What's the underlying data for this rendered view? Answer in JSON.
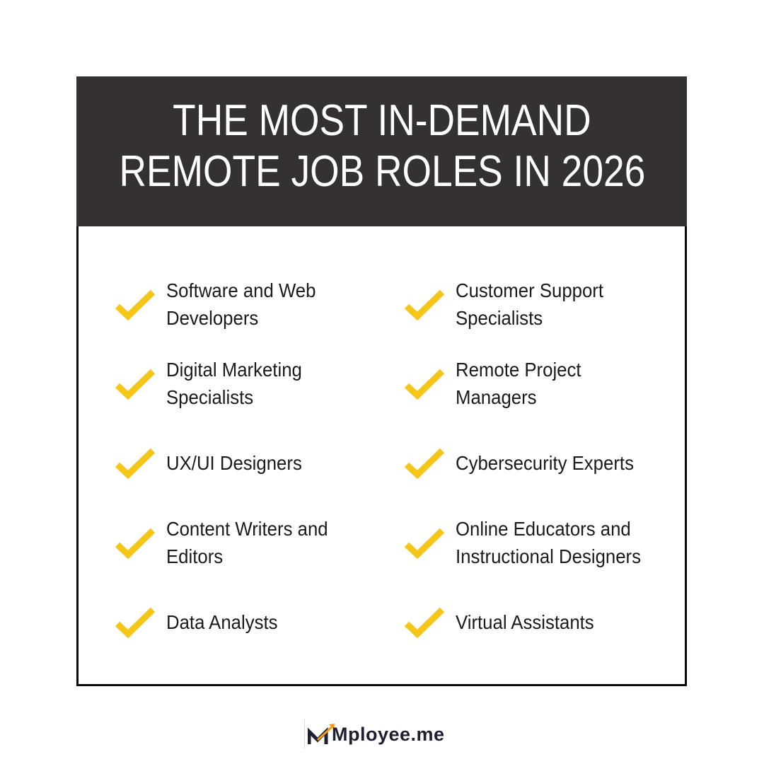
{
  "title": {
    "line1": "THE MOST IN-DEMAND",
    "line2": "REMOTE JOB ROLES IN 2026"
  },
  "colors": {
    "header_bg": "#333132",
    "check": "#F5C518",
    "logo_arrow": "#F39C12",
    "logo_text": "#1D2030"
  },
  "items": [
    {
      "icon": "checkmark-icon",
      "line1": "Software and Web",
      "line2": "Developers"
    },
    {
      "icon": "checkmark-icon",
      "line1": "Customer Support",
      "line2": "Specialists"
    },
    {
      "icon": "checkmark-icon",
      "line1": "Digital Marketing",
      "line2": "Specialists"
    },
    {
      "icon": "checkmark-icon",
      "line1": "Remote Project",
      "line2": "Managers"
    },
    {
      "icon": "checkmark-icon",
      "line1": "UX/UI Designers",
      "line2": ""
    },
    {
      "icon": "checkmark-icon",
      "line1": "Cybersecurity Experts",
      "line2": ""
    },
    {
      "icon": "checkmark-icon",
      "line1": "Content Writers and",
      "line2": "Editors"
    },
    {
      "icon": "checkmark-icon",
      "line1": "Online Educators and",
      "line2": "Instructional Designers"
    },
    {
      "icon": "checkmark-icon",
      "line1": "Data Analysts",
      "line2": ""
    },
    {
      "icon": "checkmark-icon",
      "line1": "Virtual Assistants",
      "line2": ""
    }
  ],
  "logo": {
    "text": "Mployee.me"
  }
}
